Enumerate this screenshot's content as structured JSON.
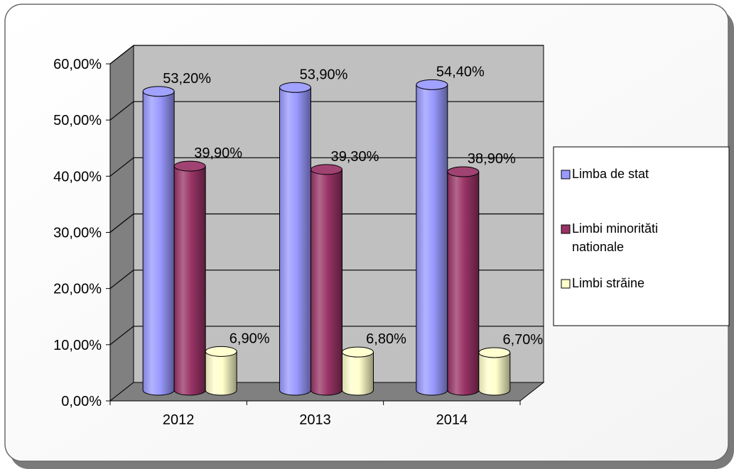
{
  "chart_data": {
    "type": "bar",
    "categories": [
      "2012",
      "2013",
      "2014"
    ],
    "series": [
      {
        "name": "Limba de stat",
        "values": [
          53.2,
          53.9,
          54.4
        ],
        "labels": [
          "53,20%",
          "53,90%",
          "54,40%"
        ],
        "color": "#9999ff"
      },
      {
        "name": "Limbi minorităti nationale",
        "values": [
          39.9,
          39.3,
          38.9
        ],
        "labels": [
          "39,90%",
          "39,30%",
          "38,90%"
        ],
        "color": "#993366"
      },
      {
        "name": "Limbi străine",
        "values": [
          6.9,
          6.8,
          6.7
        ],
        "labels": [
          "6,90%",
          "6,80%",
          "6,70%"
        ],
        "color": "#ffffcc"
      }
    ],
    "yticks": [
      "0,00%",
      "10,00%",
      "20,00%",
      "30,00%",
      "40,00%",
      "50,00%",
      "60,00%"
    ],
    "ylim": [
      0,
      60
    ],
    "grid": true,
    "legend_position": "right",
    "legend": {
      "items": [
        {
          "lines": [
            "Limba de stat"
          ]
        },
        {
          "lines": [
            "Limbi minorităti",
            "nationale"
          ]
        },
        {
          "lines": [
            "Limbi străine"
          ]
        }
      ]
    }
  }
}
